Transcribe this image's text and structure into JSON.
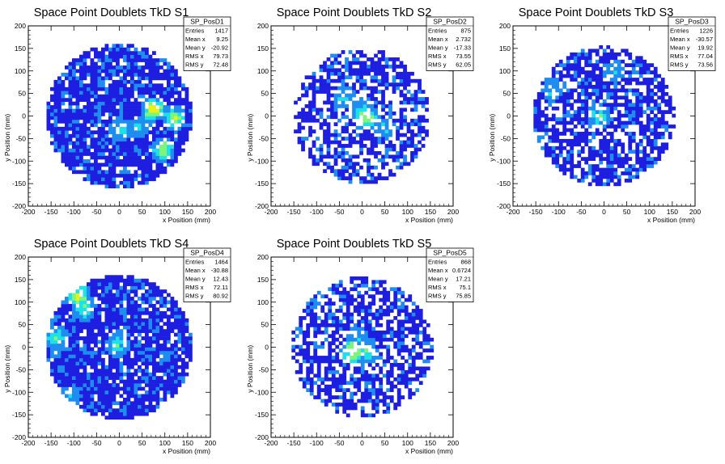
{
  "chart_data": [
    {
      "type": "heatmap",
      "title": "Space Point Doublets TkD S1",
      "xlabel": "x Position (mm)",
      "ylabel": "y Position (mm)",
      "xlim": [
        -200,
        200
      ],
      "ylim": [
        -200,
        200
      ],
      "xticks": [
        "-200",
        "-150",
        "-100",
        "-50",
        "0",
        "50",
        "100",
        "150",
        "200"
      ],
      "yticks": [
        "-200",
        "-150",
        "-100",
        "-50",
        "0",
        "50",
        "100",
        "150",
        "200"
      ],
      "stats_name": "SP_PosD1",
      "stats": [
        {
          "label": "Entries",
          "value": "1417"
        },
        {
          "label": "Mean x",
          "value": "9.25"
        },
        {
          "label": "Mean y",
          "value": "-20.92"
        },
        {
          "label": "RMS x",
          "value": "79.73"
        },
        {
          "label": "RMS y",
          "value": "72.48"
        }
      ],
      "occupied_radius_mm": 160,
      "fill_fraction": 0.85,
      "hot_spots": [
        {
          "x": 0,
          "y": -30,
          "level": 0.45
        },
        {
          "x": 75,
          "y": 15,
          "level": 1.0
        },
        {
          "x": 95,
          "y": -75,
          "level": 0.8
        },
        {
          "x": 120,
          "y": -5,
          "level": 0.75
        },
        {
          "x": 40,
          "y": -25,
          "level": 0.4
        }
      ]
    },
    {
      "type": "heatmap",
      "title": "Space Point Doublets TkD S2",
      "xlabel": "x Position (mm)",
      "ylabel": "y Position (mm)",
      "xlim": [
        -200,
        200
      ],
      "ylim": [
        -200,
        200
      ],
      "xticks": [
        "-200",
        "-150",
        "-100",
        "-50",
        "0",
        "50",
        "100",
        "150",
        "200"
      ],
      "yticks": [
        "-200",
        "-150",
        "-100",
        "-50",
        "0",
        "50",
        "100",
        "150",
        "200"
      ],
      "stats_name": "SP_PosD2",
      "stats": [
        {
          "label": "Entries",
          "value": "875"
        },
        {
          "label": "Mean x",
          "value": "2.732"
        },
        {
          "label": "Mean y",
          "value": "-17.33"
        },
        {
          "label": "RMS x",
          "value": "73.55"
        },
        {
          "label": "RMS y",
          "value": "62.05"
        }
      ],
      "occupied_radius_mm": 150,
      "fill_fraction": 0.6,
      "hot_spots": [
        {
          "x": -40,
          "y": 40,
          "level": 0.4
        },
        {
          "x": 0,
          "y": 5,
          "level": 0.55
        },
        {
          "x": 15,
          "y": -5,
          "level": 0.7
        },
        {
          "x": 50,
          "y": -25,
          "level": 0.4
        }
      ]
    },
    {
      "type": "heatmap",
      "title": "Space Point Doublets TkD S3",
      "xlabel": "x Position (mm)",
      "ylabel": "y Position (mm)",
      "xlim": [
        -200,
        200
      ],
      "ylim": [
        -200,
        200
      ],
      "xticks": [
        "-200",
        "-150",
        "-100",
        "-50",
        "0",
        "50",
        "100",
        "150",
        "200"
      ],
      "yticks": [
        "-200",
        "-150",
        "-100",
        "-50",
        "0",
        "50",
        "100",
        "150",
        "200"
      ],
      "stats_name": "SP_PosD3",
      "stats": [
        {
          "label": "Entries",
          "value": "1226"
        },
        {
          "label": "Mean x",
          "value": "-30.57"
        },
        {
          "label": "Mean y",
          "value": "19.92"
        },
        {
          "label": "RMS x",
          "value": "77.04"
        },
        {
          "label": "RMS y",
          "value": "73.56"
        }
      ],
      "occupied_radius_mm": 155,
      "fill_fraction": 0.7,
      "hot_spots": [
        {
          "x": -115,
          "y": 60,
          "level": 0.4
        },
        {
          "x": -10,
          "y": 0,
          "level": 0.55
        },
        {
          "x": 20,
          "y": 100,
          "level": 0.35
        }
      ]
    },
    {
      "type": "heatmap",
      "title": "Space Point Doublets TkD S4",
      "xlabel": "x Position (mm)",
      "ylabel": "y Position (mm)",
      "xlim": [
        -200,
        200
      ],
      "ylim": [
        -200,
        200
      ],
      "xticks": [
        "-200",
        "-150",
        "-100",
        "-50",
        "0",
        "50",
        "100",
        "150",
        "200"
      ],
      "yticks": [
        "-200",
        "-150",
        "-100",
        "-50",
        "0",
        "50",
        "100",
        "150",
        "200"
      ],
      "stats_name": "SP_PosD4",
      "stats": [
        {
          "label": "Entries",
          "value": "1464"
        },
        {
          "label": "Mean x",
          "value": "-30.88"
        },
        {
          "label": "Mean y",
          "value": "12.43"
        },
        {
          "label": "RMS x",
          "value": "72.11"
        },
        {
          "label": "RMS y",
          "value": "80.92"
        }
      ],
      "occupied_radius_mm": 160,
      "fill_fraction": 0.85,
      "hot_spots": [
        {
          "x": -90,
          "y": 115,
          "level": 0.85
        },
        {
          "x": -140,
          "y": 20,
          "level": 0.55
        },
        {
          "x": -80,
          "y": 85,
          "level": 0.6
        },
        {
          "x": -5,
          "y": 5,
          "level": 0.5
        },
        {
          "x": -110,
          "y": -110,
          "level": 0.4
        }
      ]
    },
    {
      "type": "heatmap",
      "title": "Space Point Doublets TkD S5",
      "xlabel": "x Position (mm)",
      "ylabel": "y Position (mm)",
      "xlim": [
        -200,
        200
      ],
      "ylim": [
        -200,
        200
      ],
      "xticks": [
        "-200",
        "-150",
        "-100",
        "-50",
        "0",
        "50",
        "100",
        "150",
        "200"
      ],
      "yticks": [
        "-200",
        "-150",
        "-100",
        "-50",
        "0",
        "50",
        "100",
        "150",
        "200"
      ],
      "stats_name": "SP_PosD5",
      "stats": [
        {
          "label": "Entries",
          "value": "868"
        },
        {
          "label": "Mean x",
          "value": "0.6724"
        },
        {
          "label": "Mean y",
          "value": "17.21"
        },
        {
          "label": "RMS x",
          "value": "75.1"
        },
        {
          "label": "RMS y",
          "value": "75.85"
        }
      ],
      "occupied_radius_mm": 155,
      "fill_fraction": 0.62,
      "hot_spots": [
        {
          "x": -20,
          "y": -10,
          "level": 1.0
        },
        {
          "x": 10,
          "y": -10,
          "level": 0.55
        },
        {
          "x": -10,
          "y": 20,
          "level": 0.4
        }
      ]
    }
  ],
  "palette": [
    "#1e1ee0",
    "#1f8cf0",
    "#1ee0e6",
    "#7cf57a",
    "#e8f016",
    "#f08c14",
    "#e61e1e"
  ]
}
